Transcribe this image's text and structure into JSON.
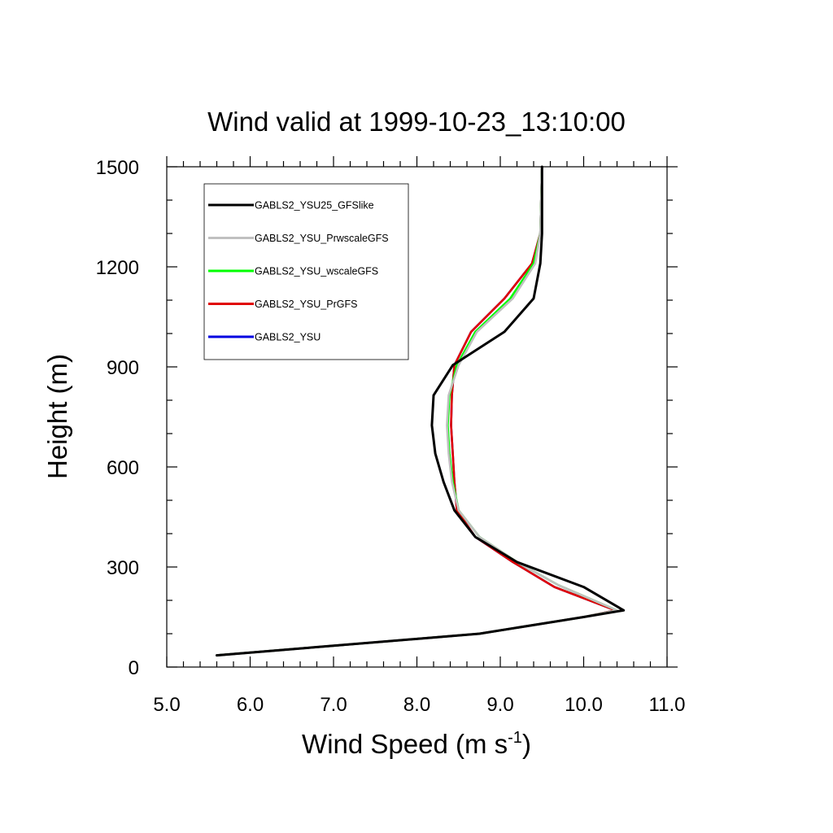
{
  "chart_data": {
    "type": "line",
    "title": "Wind valid at 1999-10-23_13:10:00",
    "xlabel": "Wind Speed (m s",
    "xlabel_superscript": "-1",
    "xlabel_suffix": ")",
    "ylabel": "Height (m)",
    "xlim": [
      5.0,
      11.0
    ],
    "ylim": [
      0,
      1500
    ],
    "x_ticks": [
      5.0,
      6.0,
      7.0,
      8.0,
      9.0,
      10.0,
      11.0
    ],
    "x_tick_labels": [
      "5.0",
      "6.0",
      "7.0",
      "8.0",
      "9.0",
      "10.0",
      "11.0"
    ],
    "y_ticks": [
      0,
      300,
      600,
      900,
      1200,
      1500
    ],
    "y_tick_labels": [
      "0",
      "300",
      "600",
      "900",
      "1200",
      "1500"
    ],
    "x_minor_step": 0.2,
    "y_minor_step": 100,
    "grid": false,
    "legend_position": "top-left",
    "series": [
      {
        "name": "GABLS2_YSU25_GFSlike",
        "color": "#000000",
        "x": [
          5.6,
          8.75,
          10.0,
          10.48,
          10.0,
          9.2,
          8.7,
          8.45,
          8.32,
          8.22,
          8.18,
          8.2,
          8.43,
          9.05,
          9.4,
          9.48,
          9.5,
          9.5
        ],
        "y": [
          35,
          100,
          150,
          170,
          240,
          315,
          390,
          470,
          555,
          640,
          725,
          815,
          905,
          1005,
          1105,
          1210,
          1300,
          1500
        ]
      },
      {
        "name": "GABLS2_YSU_PrwscaleGFS",
        "color": "#c0c0c0",
        "x": [
          5.6,
          8.75,
          10.0,
          10.4,
          9.7,
          9.2,
          8.75,
          8.5,
          8.42,
          8.38,
          8.36,
          8.38,
          8.5,
          8.72,
          9.15,
          9.42,
          9.48,
          9.5
        ],
        "y": [
          35,
          100,
          150,
          170,
          245,
          315,
          390,
          470,
          555,
          640,
          725,
          815,
          905,
          1005,
          1105,
          1210,
          1300,
          1500
        ]
      },
      {
        "name": "GABLS2_YSU_wscaleGFS",
        "color": "#00ff00",
        "x": [
          5.6,
          8.75,
          10.0,
          10.4,
          9.7,
          9.2,
          8.75,
          8.5,
          8.43,
          8.39,
          8.37,
          8.39,
          8.48,
          8.7,
          9.12,
          9.4,
          9.48,
          9.5
        ],
        "y": [
          35,
          100,
          150,
          170,
          245,
          315,
          390,
          470,
          555,
          640,
          725,
          815,
          905,
          1005,
          1105,
          1210,
          1300,
          1500
        ]
      },
      {
        "name": "GABLS2_YSU_PrGFS",
        "color": "#e00000",
        "x": [
          5.6,
          8.75,
          10.0,
          10.38,
          9.65,
          9.15,
          8.7,
          8.48,
          8.45,
          8.43,
          8.41,
          8.42,
          8.45,
          8.65,
          9.05,
          9.38,
          9.48,
          9.5
        ],
        "y": [
          35,
          100,
          150,
          170,
          240,
          315,
          390,
          470,
          555,
          640,
          725,
          815,
          905,
          1005,
          1105,
          1210,
          1300,
          1500
        ]
      },
      {
        "name": "GABLS2_YSU",
        "color": "#0000e0",
        "x": [
          5.6,
          8.75,
          10.0,
          10.38,
          9.65,
          9.15,
          8.7,
          8.48,
          8.45,
          8.43,
          8.41,
          8.42,
          8.45,
          8.65,
          9.05,
          9.38,
          9.48,
          9.5
        ],
        "y": [
          35,
          100,
          150,
          170,
          240,
          315,
          390,
          470,
          555,
          640,
          725,
          815,
          905,
          1005,
          1105,
          1210,
          1300,
          1500
        ]
      }
    ],
    "draw_order": [
      4,
      3,
      2,
      1,
      0
    ]
  }
}
